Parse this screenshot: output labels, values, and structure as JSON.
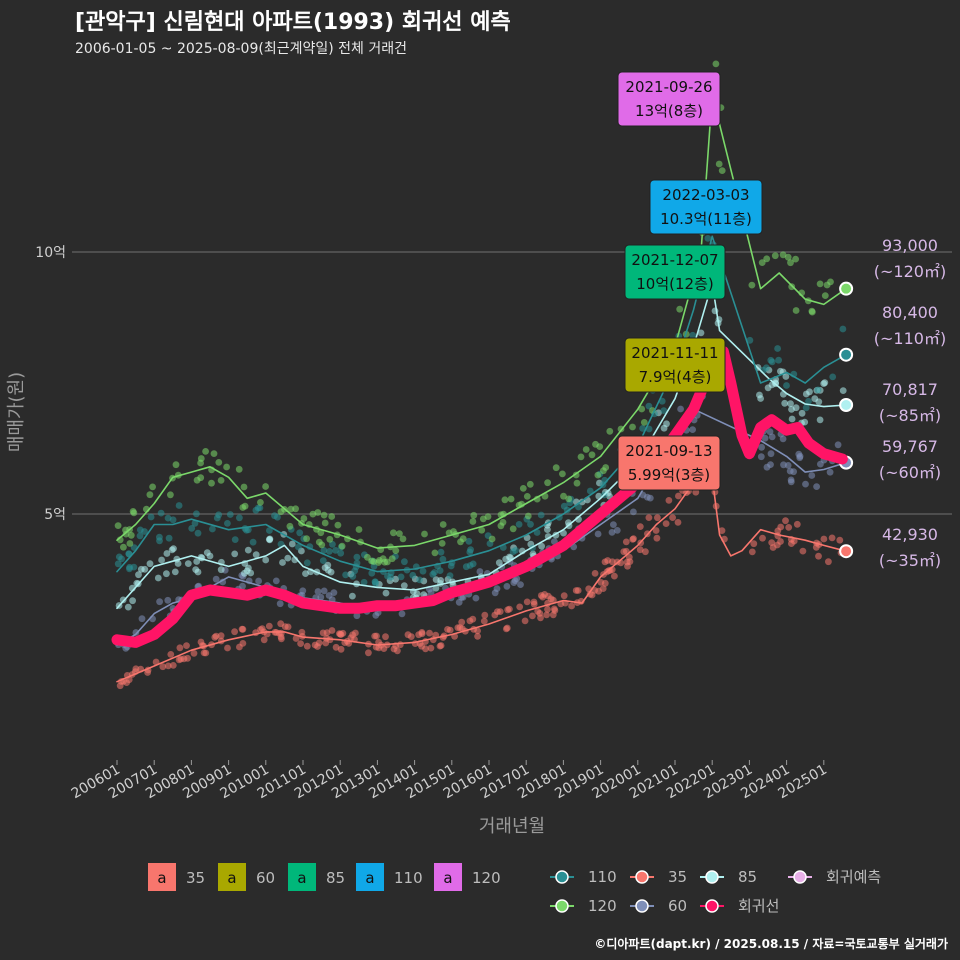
{
  "title": "[관악구] 신림현대 아파트(1993) 회귀선 예측",
  "subtitle": "2006-01-05 ~ 2025-08-09(최근계약일) 전체 거래건",
  "credit": "©디아파트(dapt.kr) / 2025.08.15 / 자료=국토교통부 실거래가",
  "chart_data": {
    "type": "scatter",
    "xlabel": "거래년월",
    "ylabel": "매매가(원)",
    "xlim": [
      "2006-01",
      "2025-08"
    ],
    "ylim_eok": [
      1.0,
      13.5
    ],
    "y_ticks": [
      {
        "value": 5,
        "label": "5억"
      },
      {
        "value": 10,
        "label": "10억"
      }
    ],
    "x_ticks": [
      "200601",
      "200701",
      "200801",
      "200901",
      "201001",
      "201101",
      "201201",
      "201301",
      "201401",
      "201501",
      "201601",
      "201701",
      "201801",
      "201901",
      "202001",
      "202101",
      "202201",
      "202301",
      "202401",
      "202501"
    ],
    "grid": "horizontal",
    "series": [
      {
        "name": "35",
        "color": "#f8766d",
        "points": [
          [
            2006.0,
            1.8
          ],
          [
            2007.0,
            2.1
          ],
          [
            2008.0,
            2.4
          ],
          [
            2009.0,
            2.6
          ],
          [
            2010.0,
            2.75
          ],
          [
            2010.5,
            2.75
          ],
          [
            2011.0,
            2.65
          ],
          [
            2012.0,
            2.6
          ],
          [
            2013.0,
            2.5
          ],
          [
            2014.0,
            2.55
          ],
          [
            2015.0,
            2.7
          ],
          [
            2016.0,
            2.9
          ],
          [
            2017.0,
            3.15
          ],
          [
            2018.0,
            3.35
          ],
          [
            2018.5,
            3.3
          ],
          [
            2019.0,
            3.8
          ],
          [
            2019.5,
            4.1
          ],
          [
            2020.0,
            4.4
          ],
          [
            2020.5,
            4.8
          ],
          [
            2021.0,
            5.1
          ],
          [
            2021.5,
            5.6
          ],
          [
            2021.7,
            5.8
          ],
          [
            2022.0,
            5.7
          ],
          [
            2022.2,
            4.6
          ],
          [
            2022.5,
            4.2
          ],
          [
            2022.8,
            4.3
          ],
          [
            2023.3,
            4.7
          ],
          [
            2023.8,
            4.6
          ],
          [
            2024.5,
            4.5
          ],
          [
            2025.0,
            4.4
          ],
          [
            2025.6,
            4.29
          ]
        ]
      },
      {
        "name": "60",
        "color": "#7f8fb8",
        "points": [
          [
            2006.0,
            2.5
          ],
          [
            2006.5,
            2.7
          ],
          [
            2007.0,
            3.1
          ],
          [
            2007.5,
            3.3
          ],
          [
            2008.0,
            3.4
          ],
          [
            2008.5,
            3.6
          ],
          [
            2009.0,
            3.8
          ],
          [
            2010.0,
            3.6
          ],
          [
            2011.0,
            3.4
          ],
          [
            2012.0,
            3.3
          ],
          [
            2013.0,
            3.15
          ],
          [
            2014.0,
            3.3
          ],
          [
            2015.0,
            3.5
          ],
          [
            2016.0,
            3.7
          ],
          [
            2017.0,
            3.95
          ],
          [
            2018.0,
            4.3
          ],
          [
            2019.0,
            4.8
          ],
          [
            2020.0,
            5.3
          ],
          [
            2020.5,
            5.9
          ],
          [
            2021.0,
            6.4
          ],
          [
            2021.5,
            7.0
          ],
          [
            2023.3,
            6.4
          ],
          [
            2024.0,
            6.1
          ],
          [
            2024.5,
            5.8
          ],
          [
            2025.0,
            5.85
          ],
          [
            2025.6,
            5.98
          ]
        ]
      },
      {
        "name": "85",
        "color": "#b0f0f0",
        "points": [
          [
            2006.0,
            3.2
          ],
          [
            2006.5,
            3.6
          ],
          [
            2007.0,
            4.0
          ],
          [
            2007.5,
            4.1
          ],
          [
            2008.0,
            4.2
          ],
          [
            2009.0,
            4.0
          ],
          [
            2010.0,
            4.2
          ],
          [
            2010.5,
            4.4
          ],
          [
            2011.0,
            4.0
          ],
          [
            2012.0,
            3.7
          ],
          [
            2013.0,
            3.6
          ],
          [
            2014.0,
            3.55
          ],
          [
            2015.0,
            3.7
          ],
          [
            2016.0,
            3.85
          ],
          [
            2017.0,
            4.3
          ],
          [
            2018.0,
            4.7
          ],
          [
            2019.0,
            5.3
          ],
          [
            2020.0,
            6.0
          ],
          [
            2021.0,
            7.2
          ],
          [
            2021.5,
            8.2
          ],
          [
            2022.0,
            9.4
          ],
          [
            2022.2,
            8.5
          ],
          [
            2023.5,
            7.6
          ],
          [
            2024.0,
            7.3
          ],
          [
            2024.5,
            7.1
          ],
          [
            2025.0,
            7.05
          ],
          [
            2025.6,
            7.08
          ]
        ]
      },
      {
        "name": "110",
        "color": "#2a8f94",
        "points": [
          [
            2006.0,
            3.9
          ],
          [
            2006.5,
            4.3
          ],
          [
            2007.0,
            4.8
          ],
          [
            2007.5,
            4.8
          ],
          [
            2008.0,
            4.9
          ],
          [
            2009.0,
            4.7
          ],
          [
            2010.0,
            4.8
          ],
          [
            2011.0,
            4.4
          ],
          [
            2012.0,
            4.1
          ],
          [
            2013.0,
            3.9
          ],
          [
            2014.0,
            3.95
          ],
          [
            2015.0,
            4.1
          ],
          [
            2016.0,
            4.3
          ],
          [
            2017.0,
            4.6
          ],
          [
            2018.0,
            5.0
          ],
          [
            2019.0,
            5.5
          ],
          [
            2020.0,
            6.3
          ],
          [
            2021.0,
            7.8
          ],
          [
            2021.5,
            8.9
          ],
          [
            2022.0,
            10.3
          ],
          [
            2023.3,
            7.5
          ],
          [
            2024.0,
            7.7
          ],
          [
            2024.5,
            7.5
          ],
          [
            2025.0,
            7.8
          ],
          [
            2025.6,
            8.04
          ]
        ]
      },
      {
        "name": "120",
        "color": "#7bd86a",
        "points": [
          [
            2006.0,
            4.5
          ],
          [
            2006.5,
            4.8
          ],
          [
            2007.0,
            5.2
          ],
          [
            2007.5,
            5.7
          ],
          [
            2008.0,
            5.8
          ],
          [
            2008.5,
            5.9
          ],
          [
            2009.0,
            5.7
          ],
          [
            2009.5,
            5.3
          ],
          [
            2010.0,
            5.4
          ],
          [
            2011.0,
            4.8
          ],
          [
            2012.0,
            4.6
          ],
          [
            2013.0,
            4.35
          ],
          [
            2014.0,
            4.4
          ],
          [
            2015.0,
            4.6
          ],
          [
            2016.0,
            4.8
          ],
          [
            2017.0,
            5.2
          ],
          [
            2018.0,
            5.6
          ],
          [
            2019.0,
            6.1
          ],
          [
            2020.0,
            7.0
          ],
          [
            2021.0,
            8.2
          ],
          [
            2021.7,
            10.0
          ],
          [
            2022.0,
            13.0
          ],
          [
            2023.3,
            9.3
          ],
          [
            2023.8,
            9.6
          ],
          [
            2024.5,
            9.1
          ],
          [
            2025.0,
            9.0
          ],
          [
            2025.6,
            9.3
          ]
        ]
      },
      {
        "name": "회귀선",
        "color": "#ff1466",
        "points": [
          [
            2006.0,
            2.6
          ],
          [
            2006.5,
            2.55
          ],
          [
            2007.0,
            2.7
          ],
          [
            2007.5,
            3.0
          ],
          [
            2008.0,
            3.45
          ],
          [
            2008.5,
            3.55
          ],
          [
            2009.0,
            3.5
          ],
          [
            2009.5,
            3.45
          ],
          [
            2010.0,
            3.55
          ],
          [
            2010.5,
            3.45
          ],
          [
            2011.0,
            3.3
          ],
          [
            2011.5,
            3.25
          ],
          [
            2012.0,
            3.2
          ],
          [
            2012.5,
            3.2
          ],
          [
            2013.0,
            3.25
          ],
          [
            2013.5,
            3.25
          ],
          [
            2014.0,
            3.3
          ],
          [
            2014.5,
            3.35
          ],
          [
            2015.0,
            3.5
          ],
          [
            2015.5,
            3.6
          ],
          [
            2016.0,
            3.7
          ],
          [
            2016.5,
            3.85
          ],
          [
            2017.0,
            4.0
          ],
          [
            2017.5,
            4.2
          ],
          [
            2018.0,
            4.4
          ],
          [
            2018.5,
            4.7
          ],
          [
            2019.0,
            5.0
          ],
          [
            2019.5,
            5.3
          ],
          [
            2020.0,
            5.6
          ],
          [
            2020.5,
            6.0
          ],
          [
            2021.0,
            6.5
          ],
          [
            2021.5,
            7.0
          ],
          [
            2021.8,
            7.5
          ],
          [
            2022.0,
            8.0
          ],
          [
            2022.3,
            8.1
          ],
          [
            2022.5,
            7.5
          ],
          [
            2022.8,
            6.5
          ],
          [
            2023.0,
            6.15
          ],
          [
            2023.3,
            6.65
          ],
          [
            2023.6,
            6.8
          ],
          [
            2024.0,
            6.6
          ],
          [
            2024.3,
            6.65
          ],
          [
            2024.6,
            6.35
          ],
          [
            2025.0,
            6.15
          ],
          [
            2025.5,
            6.05
          ]
        ]
      }
    ],
    "annotations": [
      {
        "date": "2021-09-26",
        "text": "13억(8층)",
        "color": "#e06be8"
      },
      {
        "date": "2022-03-03",
        "text": "10.3억(11층)",
        "color": "#10a8e8"
      },
      {
        "date": "2021-12-07",
        "text": "10억(12층)",
        "color": "#00b77a"
      },
      {
        "date": "2021-11-11",
        "text": "7.9억(4층)",
        "color": "#a9a800"
      },
      {
        "date": "2021-09-13",
        "text": "5.99억(3층)",
        "color": "#f8766d"
      }
    ],
    "end_labels": [
      {
        "value": "93,000",
        "area": "(~120㎡)",
        "y": 9.3,
        "color": "#7bd86a"
      },
      {
        "value": "80,400",
        "area": "(~110㎡)",
        "y": 8.04,
        "color": "#2a8f94"
      },
      {
        "value": "70,817",
        "area": "(~85㎡)",
        "y": 7.08,
        "color": "#b0f0f0"
      },
      {
        "value": "59,767",
        "area": "(~60㎡)",
        "y": 5.98,
        "color": "#7f8fb8"
      },
      {
        "value": "42,930",
        "area": "(~35㎡)",
        "y": 4.29,
        "color": "#f8766d"
      }
    ],
    "legend_fill": [
      {
        "label": "35",
        "color": "#f8766d",
        "key": "a"
      },
      {
        "label": "60",
        "color": "#a9a800",
        "key": "a"
      },
      {
        "label": "85",
        "color": "#00b77a",
        "key": "a"
      },
      {
        "label": "110",
        "color": "#10a8e8",
        "key": "a"
      },
      {
        "label": "120",
        "color": "#e06be8",
        "key": "a"
      }
    ],
    "legend_line": [
      {
        "label": "110",
        "color": "#2a8f94"
      },
      {
        "label": "35",
        "color": "#f8766d"
      },
      {
        "label": "85",
        "color": "#b0f0f0"
      },
      {
        "label": "회귀예측",
        "color": "#e8b0e8"
      },
      {
        "label": "120",
        "color": "#7bd86a"
      },
      {
        "label": "60",
        "color": "#7f8fb8"
      },
      {
        "label": "회귀선",
        "color": "#ff1466"
      }
    ]
  }
}
